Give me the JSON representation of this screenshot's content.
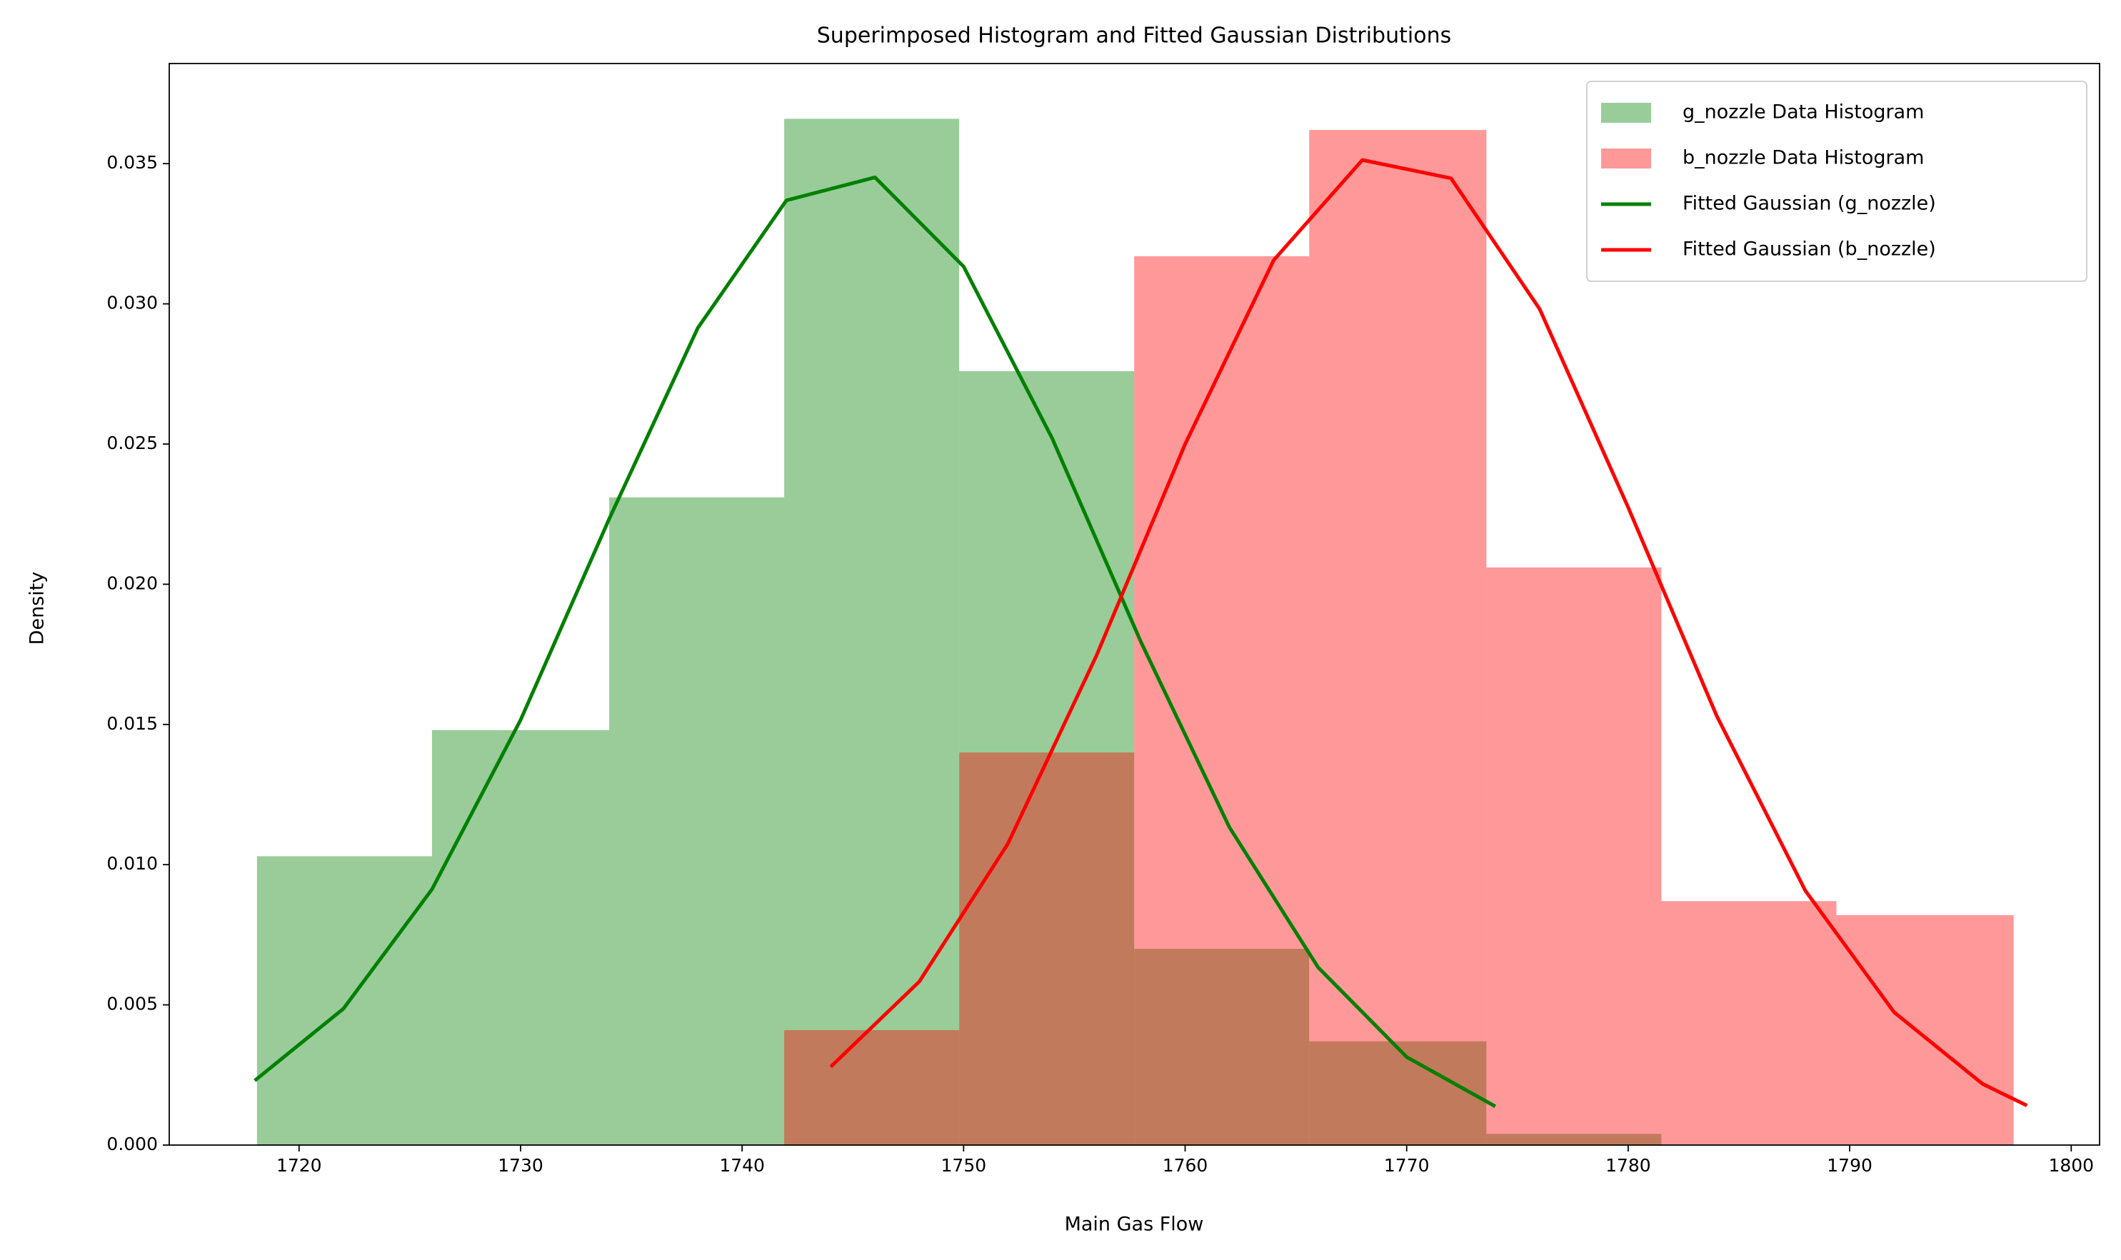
{
  "chart_data": {
    "type": "histogram",
    "title": "Superimposed Histogram and Fitted Gaussian Distributions",
    "x_label": "Main Gas Flow",
    "y_label": "Density",
    "xlim": [
      1714.14,
      1801.28
    ],
    "ylim": [
      0,
      0.03857
    ],
    "xticks": [
      1720,
      1730,
      1740,
      1750,
      1760,
      1770,
      1780,
      1790,
      1800
    ],
    "yticks": [
      {
        "value": 0,
        "label": "0.000"
      },
      {
        "value": 0.005,
        "label": "0.005"
      },
      {
        "value": 0.01,
        "label": "0.010"
      },
      {
        "value": 0.015,
        "label": "0.015"
      },
      {
        "value": 0.02,
        "label": "0.020"
      },
      {
        "value": 0.025,
        "label": "0.025"
      },
      {
        "value": 0.03,
        "label": "0.030"
      },
      {
        "value": 0.035,
        "label": "0.035"
      }
    ],
    "grid": false,
    "legend": "upper right",
    "series": [
      {
        "name": "g_nozzle Data Histogram",
        "type": "histogram",
        "color": "green",
        "alpha": 0.4,
        "bins": [
          1718.1,
          1726.0,
          1734.0,
          1741.9,
          1749.8,
          1757.7,
          1765.6,
          1773.6,
          1781.5
        ],
        "values": [
          0.0103,
          0.0148,
          0.0231,
          0.0366,
          0.0276,
          0.007,
          0.0037,
          0.0004
        ]
      },
      {
        "name": "b_nozzle Data Histogram",
        "type": "histogram",
        "color": "red",
        "alpha": 0.4,
        "bins": [
          1741.9,
          1749.8,
          1757.7,
          1765.6,
          1773.6,
          1781.5,
          1789.4,
          1797.4
        ],
        "values": [
          0.0041,
          0.014,
          0.0317,
          0.0362,
          0.0206,
          0.0087,
          0.0082
        ]
      },
      {
        "name": "Fitted Gaussian (g_nozzle)",
        "type": "line",
        "color": "green",
        "x": [
          1718,
          1722,
          1726,
          1730,
          1734,
          1738,
          1742,
          1746,
          1750,
          1754,
          1758,
          1762,
          1766,
          1770,
          1774
        ],
        "values": [
          0.0023,
          0.00486,
          0.00912,
          0.01516,
          0.02233,
          0.02914,
          0.03369,
          0.03451,
          0.03133,
          0.0252,
          0.01795,
          0.01133,
          0.00634,
          0.00314,
          0.00138
        ]
      },
      {
        "name": "Fitted Gaussian (b_nozzle)",
        "type": "line",
        "color": "red",
        "x": [
          1744,
          1748,
          1752,
          1756,
          1760,
          1764,
          1768,
          1772,
          1776,
          1780,
          1784,
          1788,
          1792,
          1796,
          1798
        ],
        "values": [
          0.00279,
          0.00583,
          0.01075,
          0.01746,
          0.025,
          0.03156,
          0.03513,
          0.03448,
          0.02982,
          0.02274,
          0.0153,
          0.00907,
          0.00474,
          0.00218,
          0.00141
        ]
      }
    ]
  }
}
